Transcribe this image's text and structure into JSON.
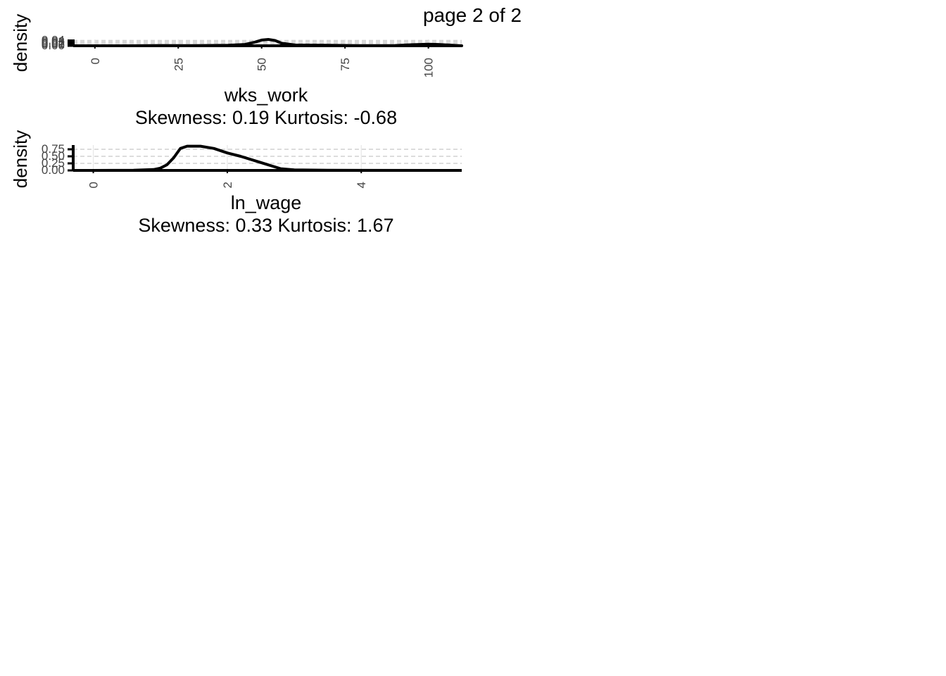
{
  "page_title": "page 2 of 2",
  "chart_data": [
    {
      "type": "line",
      "series": [
        {
          "x": [
            -5,
            0,
            10,
            20,
            30,
            40,
            45,
            48,
            50,
            52,
            54,
            56,
            60,
            70,
            80,
            90,
            95,
            100,
            103,
            110
          ],
          "values": [
            0.0,
            0.0,
            0.0,
            0.002,
            0.001,
            0.004,
            0.01,
            0.028,
            0.043,
            0.048,
            0.04,
            0.02,
            0.006,
            0.004,
            0.001,
            0.002,
            0.008,
            0.012,
            0.01,
            0.0
          ]
        }
      ],
      "xlabel": "wks_work",
      "subtitle": "Skewness: 0.19 Kurtosis: -0.68",
      "ylabel": "density",
      "x_ticks": [
        "0",
        "25",
        "50",
        "75",
        "100"
      ],
      "x_tick_values": [
        0,
        25,
        50,
        75,
        100
      ],
      "y_ticks": [
        "0.00",
        "0.01",
        "0.02",
        "0.03",
        "0.04"
      ],
      "y_tick_values": [
        0,
        0.01,
        0.02,
        0.03,
        0.04
      ],
      "xlim": [
        -6.5,
        110
      ],
      "ylim": [
        0,
        0.048
      ],
      "grid": "horizontal-dashed",
      "legend": "none"
    },
    {
      "type": "line",
      "series": [
        {
          "x": [
            0.0,
            0.6,
            0.9,
            1.0,
            1.1,
            1.2,
            1.3,
            1.4,
            1.6,
            1.8,
            2.0,
            2.2,
            2.5,
            2.8,
            3.0,
            3.5,
            4.0,
            5.2
          ],
          "values": [
            0.0,
            0.005,
            0.03,
            0.08,
            0.2,
            0.45,
            0.78,
            0.86,
            0.86,
            0.78,
            0.62,
            0.5,
            0.28,
            0.06,
            0.02,
            0.005,
            0.002,
            0.0
          ]
        }
      ],
      "xlabel": "ln_wage",
      "subtitle": "Skewness: 0.33 Kurtosis: 1.67",
      "ylabel": "density",
      "x_ticks": [
        "0",
        "2",
        "4"
      ],
      "x_tick_values": [
        0,
        2,
        4
      ],
      "y_ticks": [
        "0.00",
        "0.25",
        "0.50",
        "0.75"
      ],
      "y_tick_values": [
        0,
        0.25,
        0.5,
        0.75
      ],
      "xlim": [
        -0.3,
        5.5
      ],
      "ylim": [
        0,
        0.9
      ],
      "grid": "horizontal-dashed",
      "legend": "none"
    }
  ]
}
